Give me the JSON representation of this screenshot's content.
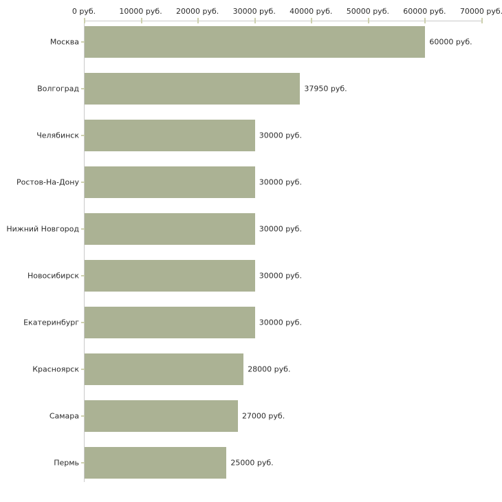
{
  "chart": {
    "background_color": "#ffffff",
    "bar_color": "#abb294",
    "axis_line_color": "#c9c9c9",
    "tick_mark_color": "#cdd0ae",
    "text_color": "#2b2b2b"
  },
  "chart_data": {
    "type": "bar",
    "orientation": "horizontal",
    "title": "",
    "xlabel": "",
    "ylabel": "",
    "xlim": [
      0,
      70000
    ],
    "grid": false,
    "legend": false,
    "x_tick_values": [
      0,
      10000,
      20000,
      30000,
      40000,
      50000,
      60000,
      70000
    ],
    "x_tick_labels": [
      "0 руб.",
      "10000 руб.",
      "20000 руб.",
      "30000 руб.",
      "40000 руб.",
      "50000 руб.",
      "60000 руб.",
      "70000 руб."
    ],
    "categories": [
      "Москва",
      "Волгоград",
      "Челябинск",
      "Ростов-На-Дону",
      "Нижний Новгород",
      "Новосибирск",
      "Екатеринбург",
      "Красноярск",
      "Самара",
      "Пермь"
    ],
    "values": [
      60000,
      37950,
      30000,
      30000,
      30000,
      30000,
      30000,
      28000,
      27000,
      25000
    ],
    "value_labels": [
      "60000 руб.",
      "37950 руб.",
      "30000 руб.",
      "30000 руб.",
      "30000 руб.",
      "30000 руб.",
      "30000 руб.",
      "28000 руб.",
      "27000 руб.",
      "25000 руб."
    ]
  }
}
